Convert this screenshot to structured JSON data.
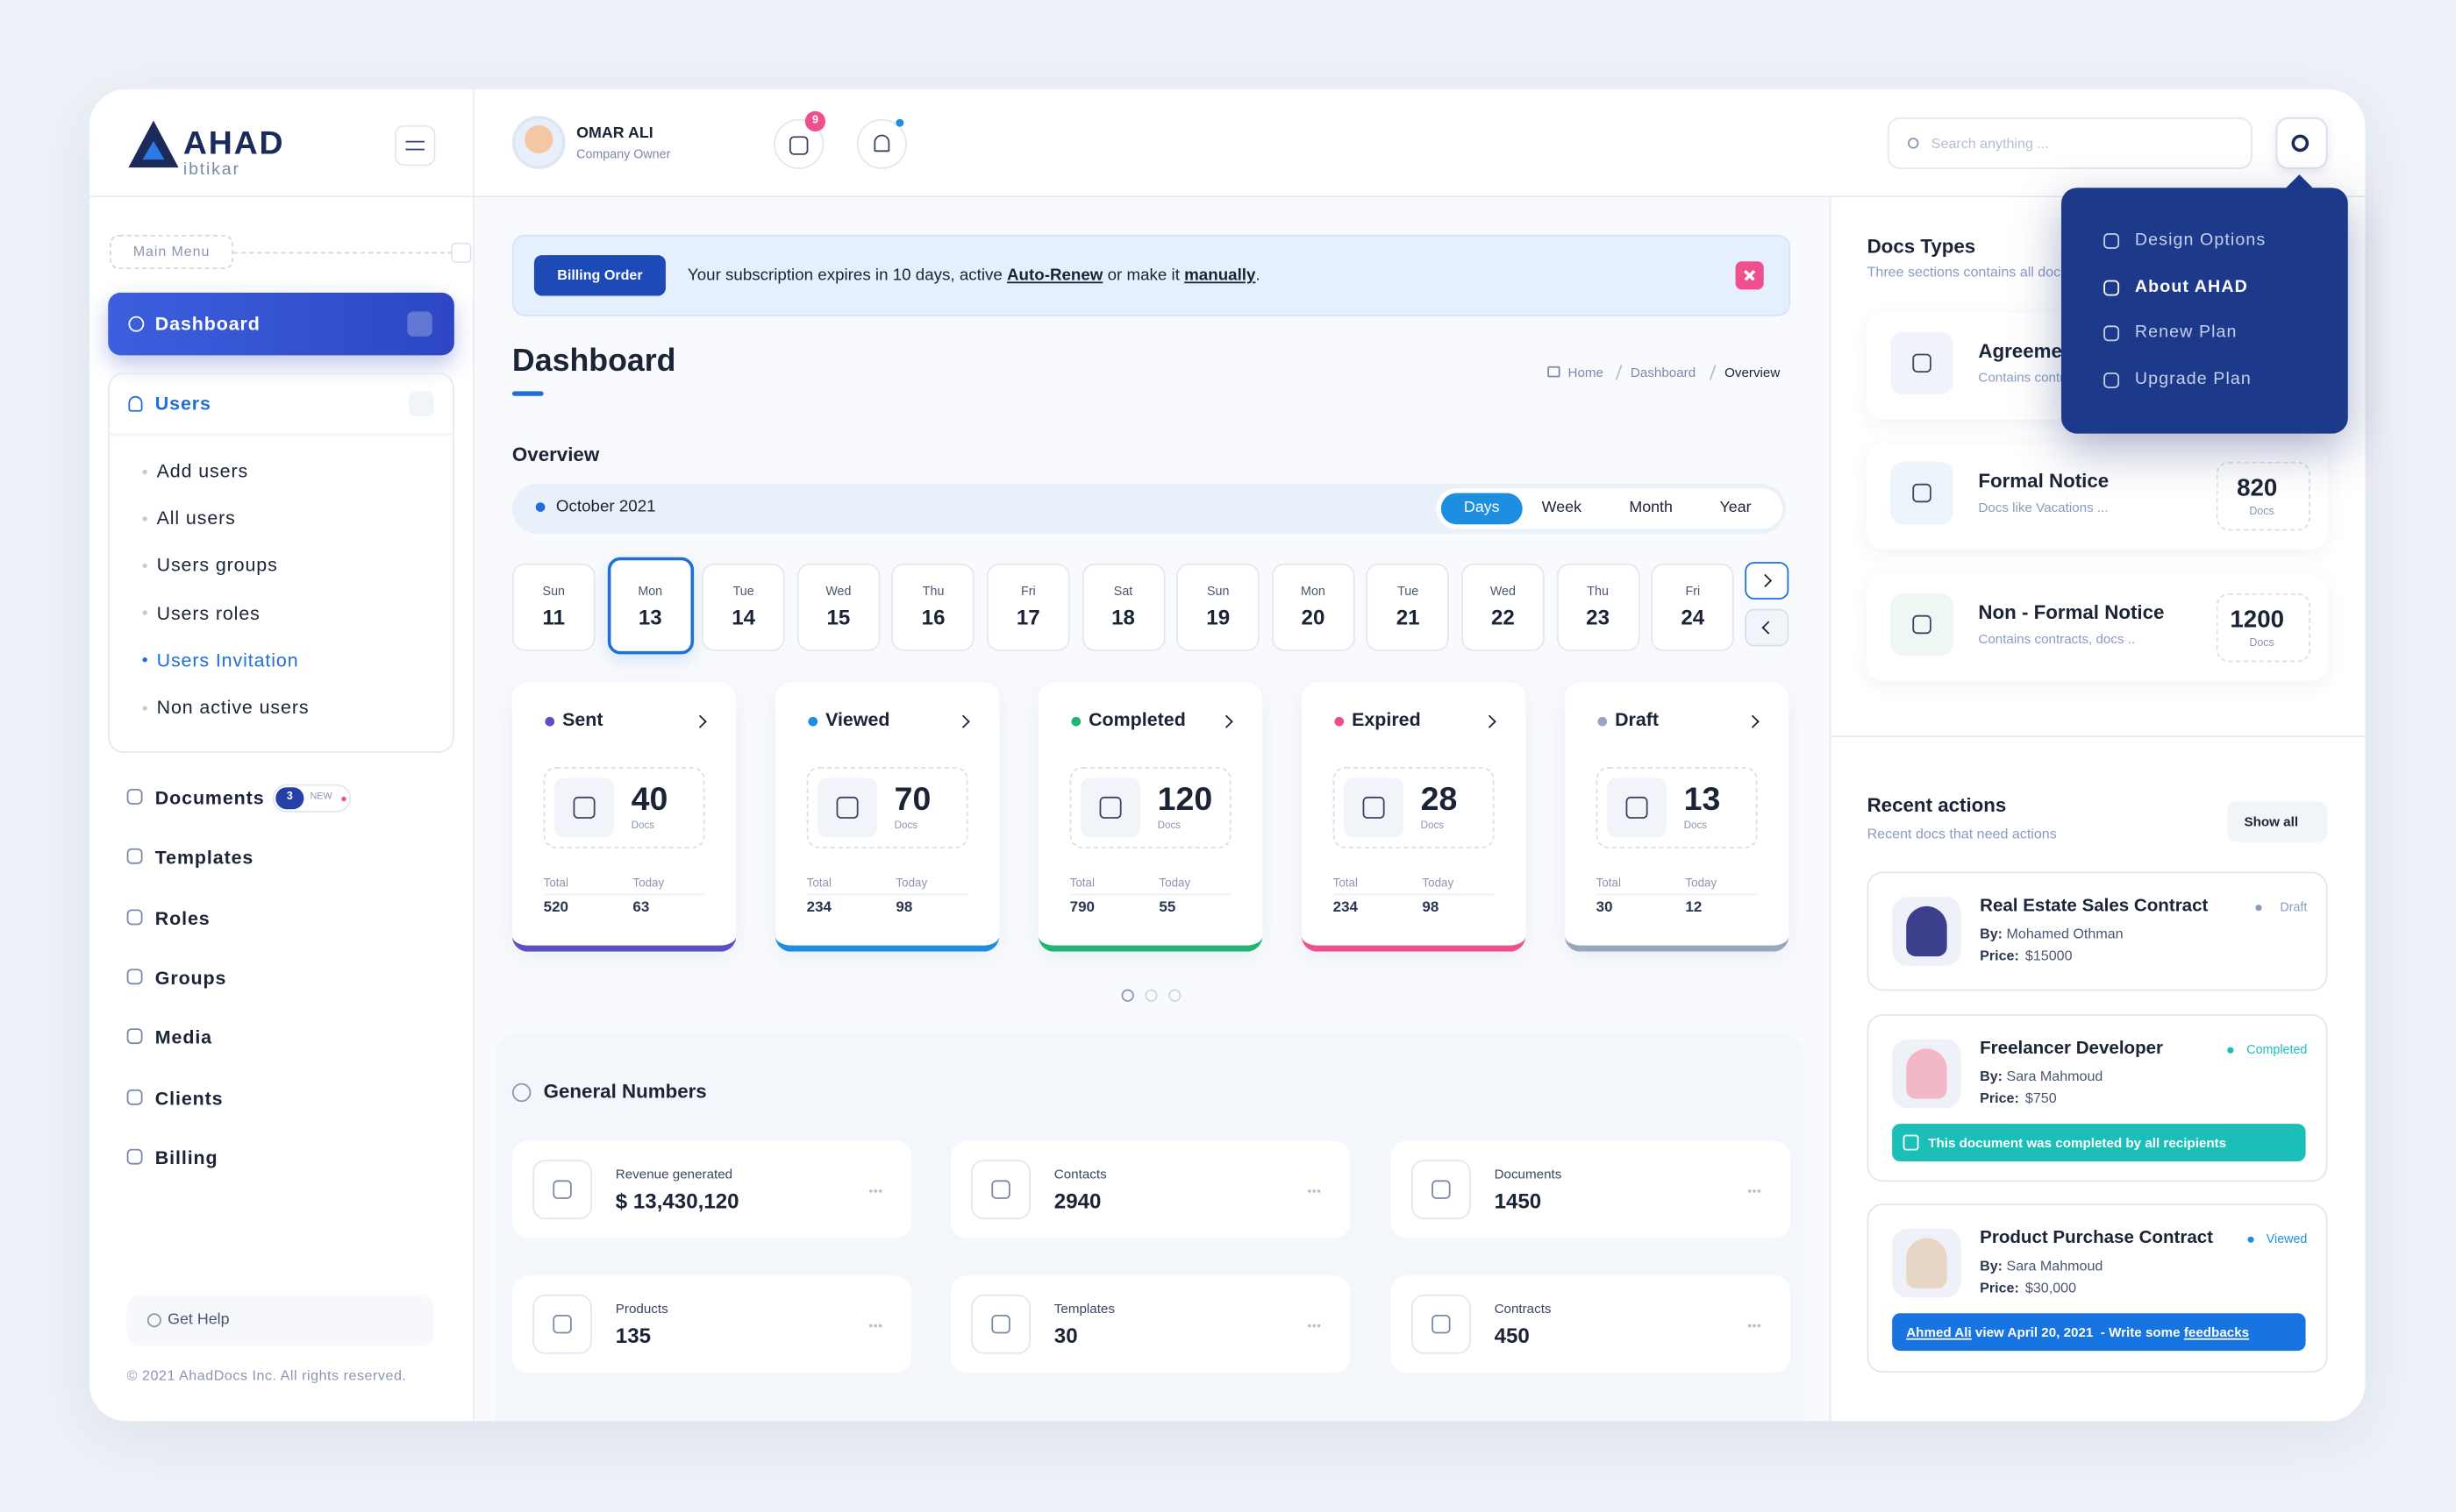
{
  "brand": {
    "name": "AHAD",
    "tagline": "ibtikar"
  },
  "header": {
    "user_name": "OMAR ALI",
    "user_role": "Company Owner",
    "mail_badge": 9,
    "search_placeholder": "Search anything ..."
  },
  "settings_menu": {
    "items": [
      {
        "label": "Design Options"
      },
      {
        "label": "About AHAD",
        "active": true
      },
      {
        "label": "Renew Plan"
      },
      {
        "label": "Upgrade Plan"
      }
    ]
  },
  "sidebar": {
    "section_label": "Main Menu",
    "dashboard": "Dashboard",
    "users": {
      "label": "Users",
      "items": [
        {
          "label": "Add users"
        },
        {
          "label": "All users"
        },
        {
          "label": "Users groups"
        },
        {
          "label": "Users roles"
        },
        {
          "label": "Users Invitation",
          "active": true
        },
        {
          "label": "Non active users"
        }
      ]
    },
    "menu": [
      {
        "label": "Documents",
        "badge": 3,
        "tag": "NEW"
      },
      {
        "label": "Templates"
      },
      {
        "label": "Roles"
      },
      {
        "label": "Groups"
      },
      {
        "label": "Media"
      },
      {
        "label": "Clients"
      },
      {
        "label": "Billing"
      }
    ],
    "help": "Get Help",
    "copyright": "© 2021 AhadDocs Inc. All rights reserved."
  },
  "alert": {
    "button": "Billing Order",
    "parts": [
      {
        "text": "Your subscription expires in 10 days, active "
      },
      {
        "text": "Auto-Renew",
        "link": true
      },
      {
        "text": " or make it "
      },
      {
        "text": "manually",
        "link": true
      },
      {
        "text": "."
      }
    ]
  },
  "page": {
    "title": "Dashboard",
    "breadcrumb": [
      "Home",
      "Dashboard",
      "Overview"
    ]
  },
  "overview": {
    "title": "Overview",
    "month": "October 2021",
    "ranges": [
      {
        "label": "Days",
        "active": true
      },
      {
        "label": "Week"
      },
      {
        "label": "Month"
      },
      {
        "label": "Year"
      }
    ],
    "days": [
      {
        "dow": "Sun",
        "day": 11
      },
      {
        "dow": "Mon",
        "day": 13,
        "selected": true
      },
      {
        "dow": "Tue",
        "day": 14
      },
      {
        "dow": "Wed",
        "day": 15
      },
      {
        "dow": "Thu",
        "day": 16
      },
      {
        "dow": "Fri",
        "day": 17
      },
      {
        "dow": "Sat",
        "day": 18
      },
      {
        "dow": "Sun",
        "day": 19
      },
      {
        "dow": "Mon",
        "day": 20
      },
      {
        "dow": "Tue",
        "day": 21
      },
      {
        "dow": "Wed",
        "day": 22
      },
      {
        "dow": "Thu",
        "day": 23
      },
      {
        "dow": "Fri",
        "day": 24
      }
    ]
  },
  "status_labels": {
    "unit": "Docs",
    "total": "Total",
    "today": "Today"
  },
  "status_cards": [
    {
      "name": "Sent",
      "color": "#5b4fc4",
      "count": 40,
      "total": 520,
      "today": 63
    },
    {
      "name": "Viewed",
      "color": "#1e8fe0",
      "count": 70,
      "total": 234,
      "today": 98
    },
    {
      "name": "Completed",
      "color": "#22b573",
      "count": 120,
      "total": 790,
      "today": 55
    },
    {
      "name": "Expired",
      "color": "#ef4f8f",
      "count": 28,
      "total": 234,
      "today": 98
    },
    {
      "name": "Draft",
      "color": "#9aa6c0",
      "count": 13,
      "total": 30,
      "today": 12
    }
  ],
  "general_numbers": {
    "title": "General Numbers",
    "items": [
      {
        "label": "Revenue generated",
        "value": "$ 13,430,120"
      },
      {
        "label": "Contacts",
        "value": "2940"
      },
      {
        "label": "Documents",
        "value": "1450"
      },
      {
        "label": "Products",
        "value": "135"
      },
      {
        "label": "Templates",
        "value": "30"
      },
      {
        "label": "Contracts",
        "value": "450"
      }
    ]
  },
  "docs_types": {
    "title": "Docs Types",
    "subtitle": "Three sections contains all docs",
    "count_unit": "Docs",
    "items": [
      {
        "name": "Agreement",
        "desc": "Contains contracts"
      },
      {
        "name": "Formal Notice",
        "desc": "Docs like Vacations ...",
        "count": 820
      },
      {
        "name": "Non - Formal Notice",
        "desc": "Contains contracts, docs ..",
        "count": 1200
      }
    ]
  },
  "recent_actions": {
    "title": "Recent actions",
    "subtitle": "Recent docs that need actions",
    "show_all": "Show all",
    "by_label": "By:",
    "price_label": "Price:",
    "items": [
      {
        "title": "Real Estate Sales Contract",
        "status": "Draft",
        "status_color": "#8a9bbf",
        "by": "Mohamed Othman",
        "price": "$15000"
      },
      {
        "title": "Freelancer Developer",
        "status": "Completed",
        "status_color": "#1bbfb8",
        "by": "Sara Mahmoud",
        "price": "$750",
        "note_color": "#1bbfb8",
        "note": [
          {
            "text": "This document was completed by all recipients"
          }
        ]
      },
      {
        "title": "Product Purchase Contract",
        "status": "Viewed",
        "status_color": "#1e8fe0",
        "by": "Sara Mahmoud",
        "price": "$30,000",
        "note_color": "#1774e0",
        "note": [
          {
            "text": "Ahmed Ali",
            "link": true
          },
          {
            "text": " view April 20, 2021  - Write some "
          },
          {
            "text": "feedbacks",
            "link": true
          }
        ]
      }
    ]
  }
}
